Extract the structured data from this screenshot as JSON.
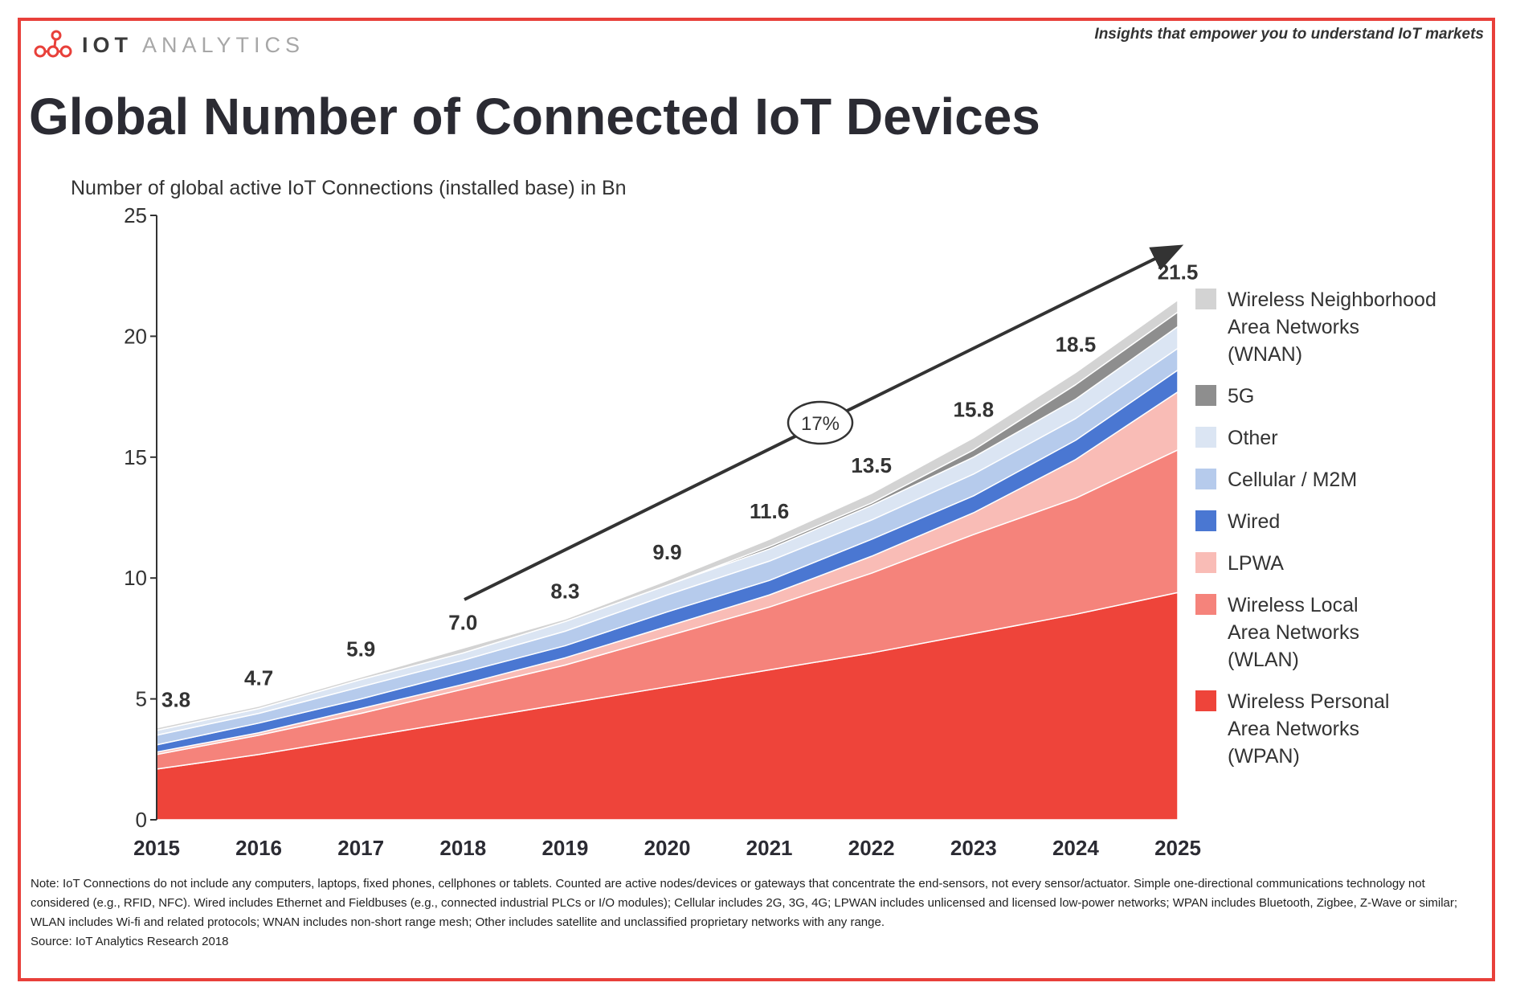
{
  "brand": {
    "logo_icon": "network-nodes-icon",
    "name_part1": "IOT",
    "name_part2": "ANALYTICS"
  },
  "tagline": "Insights that empower you to understand IoT markets",
  "title": "Global Number of Connected IoT Devices",
  "subtitle": "Number of global active IoT Connections (installed base) in Bn",
  "chart_data": {
    "type": "area",
    "stacked": true,
    "categories": [
      "2015",
      "2016",
      "2017",
      "2018",
      "2019",
      "2020",
      "2021",
      "2022",
      "2023",
      "2024",
      "2025"
    ],
    "ylim": [
      0,
      25
    ],
    "yticks": [
      0,
      5,
      10,
      15,
      20,
      25
    ],
    "totals": [
      3.8,
      4.7,
      5.9,
      7.0,
      8.3,
      9.9,
      11.6,
      13.5,
      15.8,
      18.5,
      21.5
    ],
    "total_labels": [
      "3.8",
      "4.7",
      "5.9",
      "7.0",
      "8.3",
      "9.9",
      "11.6",
      "13.5",
      "15.8",
      "18.5",
      "21.5"
    ],
    "series": [
      {
        "name": "Wireless Personal Area Networks (WPAN)",
        "color": "#ee443a",
        "values": [
          2.1,
          2.7,
          3.4,
          4.1,
          4.8,
          5.5,
          6.2,
          6.9,
          7.7,
          8.5,
          9.4
        ]
      },
      {
        "name": "Wireless Local Area Networks (WLAN)",
        "color": "#f5837b",
        "values": [
          0.6,
          0.8,
          1.0,
          1.3,
          1.6,
          2.1,
          2.6,
          3.3,
          4.1,
          4.8,
          5.9
        ]
      },
      {
        "name": "LPWA",
        "color": "#f9bcb6",
        "values": [
          0.1,
          0.1,
          0.2,
          0.2,
          0.3,
          0.4,
          0.5,
          0.7,
          0.9,
          1.6,
          2.4
        ]
      },
      {
        "name": "Wired",
        "color": "#4a77d2",
        "values": [
          0.3,
          0.4,
          0.4,
          0.5,
          0.5,
          0.6,
          0.6,
          0.7,
          0.7,
          0.8,
          0.9
        ]
      },
      {
        "name": "Cellular / M2M",
        "color": "#b6cbec",
        "values": [
          0.4,
          0.4,
          0.5,
          0.5,
          0.6,
          0.7,
          0.8,
          0.8,
          0.9,
          0.9,
          0.9
        ]
      },
      {
        "name": "Other",
        "color": "#dbe5f3",
        "values": [
          0.2,
          0.2,
          0.3,
          0.3,
          0.4,
          0.4,
          0.5,
          0.6,
          0.7,
          0.8,
          0.9
        ]
      },
      {
        "name": "5G",
        "color": "#8e8e8e",
        "values": [
          0,
          0,
          0,
          0,
          0,
          0,
          0.1,
          0.1,
          0.3,
          0.6,
          0.6
        ]
      },
      {
        "name": "Wireless Neighborhood Area Networks (WNAN)",
        "color": "#d3d3d3",
        "values": [
          0.1,
          0.1,
          0.1,
          0.2,
          0.1,
          0.2,
          0.3,
          0.4,
          0.5,
          0.5,
          0.5
        ]
      }
    ],
    "cagr_label": "17%",
    "legend_position": "right"
  },
  "legend": {
    "items": [
      {
        "lines": [
          "Wireless Neighborhood",
          "Area Networks",
          "(WNAN)"
        ],
        "color": "#d3d3d3"
      },
      {
        "lines": [
          "5G"
        ],
        "color": "#8e8e8e"
      },
      {
        "lines": [
          "Other"
        ],
        "color": "#dbe5f3"
      },
      {
        "lines": [
          "Cellular / M2M"
        ],
        "color": "#b6cbec"
      },
      {
        "lines": [
          "Wired"
        ],
        "color": "#4a77d2"
      },
      {
        "lines": [
          "LPWA"
        ],
        "color": "#f9bcb6"
      },
      {
        "lines": [
          "Wireless Local",
          "Area Networks",
          "(WLAN)"
        ],
        "color": "#f5837b"
      },
      {
        "lines": [
          "Wireless Personal",
          "Area Networks",
          "(WPAN)"
        ],
        "color": "#ee443a"
      }
    ]
  },
  "note": {
    "text": "Note: IoT Connections do not include any computers, laptops, fixed phones, cellphones or tablets. Counted are active nodes/devices or gateways that concentrate the end-sensors, not every sensor/actuator. Simple one-directional communications technology not considered (e.g., RFID, NFC). Wired includes Ethernet and Fieldbuses (e.g., connected industrial PLCs or I/O modules); Cellular includes 2G, 3G, 4G; LPWAN includes unlicensed and licensed low-power networks; WPAN includes Bluetooth, Zigbee, Z-Wave or similar; WLAN includes Wi-fi and related protocols; WNAN includes non-short range mesh; Other includes satellite and unclassified proprietary networks with any range.",
    "source": "Source: IoT Analytics Research 2018"
  }
}
